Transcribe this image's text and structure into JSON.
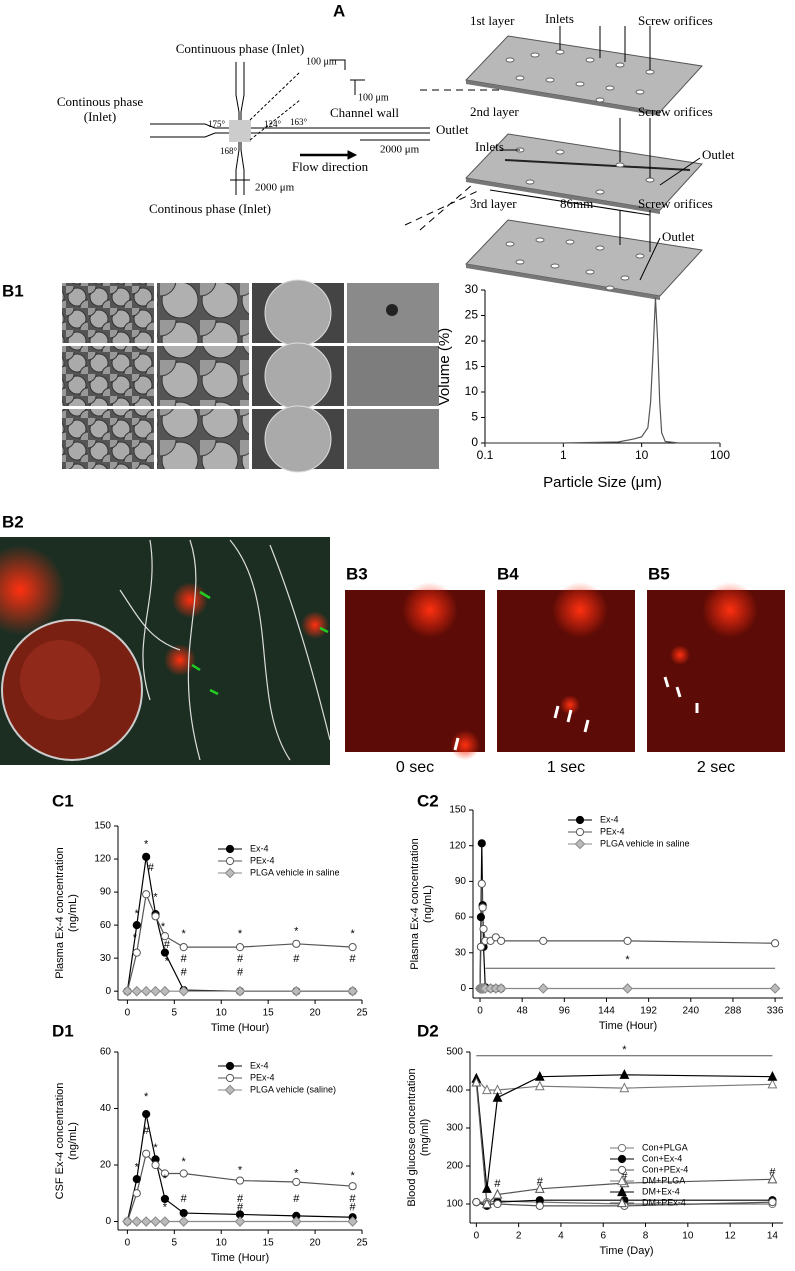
{
  "panel_labels": [
    "A",
    "B1",
    "B2",
    "B3",
    "B4",
    "B5",
    "C1",
    "C2",
    "D1",
    "D2"
  ],
  "diagram_a": {
    "top_inlet": "Continuous phase (Inlet)",
    "left_inlet": [
      "Continous phase",
      "(Inlet)"
    ],
    "bottom_inlet": "Continous phase (Inlet)",
    "width_a": "100 μm",
    "width_b": "100 μm",
    "channel_wall": "Channel wall",
    "outlet": "Outlet",
    "angles": [
      "175°",
      "124°",
      "163°",
      "168°"
    ],
    "length_a": "2000 μm",
    "length_b": "2000 μm",
    "flow": "Flow direction",
    "layer1": {
      "name": "1st layer",
      "inlets": "Inlets",
      "screw": "Screw orifices"
    },
    "layer2": {
      "name": "2nd layer",
      "inlets": "Inlets",
      "screw": "Screw orifices",
      "outlet": "Outlet",
      "size": "86mm"
    },
    "layer3": {
      "name": "3rd layer",
      "screw": "Screw orifices",
      "outlet": "Outlet"
    }
  },
  "time_labels": [
    "0 sec",
    "1 sec",
    "2 sec"
  ],
  "chart_data": [
    {
      "type": "line",
      "xscale": "log",
      "xlabel": "Particle Size (μm)",
      "ylabel": [
        "Volume (%)"
      ],
      "x": [
        0.1,
        1,
        5,
        8,
        10,
        12,
        13,
        14,
        15,
        16,
        17,
        18,
        20,
        30,
        100
      ],
      "values": [
        0,
        0,
        0.2,
        0.8,
        1.2,
        3,
        8,
        18,
        28.5,
        20,
        8,
        2,
        0.3,
        0,
        0
      ],
      "color": "#555",
      "xlim": [
        0.1,
        100
      ],
      "xticks": [
        0.1,
        1,
        10,
        100
      ],
      "ylim": [
        0,
        30
      ],
      "yticks": [
        0,
        5,
        10,
        15,
        20,
        25,
        30
      ]
    },
    {
      "type": "line",
      "xlabel": "Time (Hour)",
      "ylabel": [
        "Plasma Ex-4 concentration",
        "(ng/mL)"
      ],
      "x": [
        0,
        1,
        2,
        3,
        4,
        6,
        12,
        18,
        24
      ],
      "xlim": [
        -1,
        25
      ],
      "xticks": [
        0,
        5,
        10,
        15,
        20,
        25
      ],
      "ylim": [
        -8,
        150
      ],
      "yticks": [
        0,
        30,
        60,
        90,
        120,
        150
      ],
      "series": [
        {
          "name": "Ex-4",
          "color": "#000",
          "fill": "#000",
          "marker": "circle",
          "values": [
            0,
            60,
            122,
            70,
            35,
            1,
            0,
            0,
            0
          ]
        },
        {
          "name": "PEx-4",
          "color": "#555",
          "fill": "#fff",
          "marker": "circle",
          "values": [
            0,
            35,
            88,
            68,
            50,
            40,
            40,
            43,
            40
          ]
        },
        {
          "name": "PLGA vehicle in saline",
          "color": "#888",
          "fill": "#bbb",
          "marker": "diamond",
          "values": [
            0,
            0,
            0,
            0,
            0,
            0,
            0,
            0,
            0
          ]
        }
      ],
      "annotations": [
        {
          "text": "*",
          "x": 2,
          "y": 133
        },
        {
          "text": "#",
          "x": 2.5,
          "y": 112
        },
        {
          "text": "*",
          "x": 1,
          "y": 70
        },
        {
          "text": "*",
          "x": 0.8,
          "y": 48
        },
        {
          "text": "*",
          "x": 3,
          "y": 85
        },
        {
          "text": "*",
          "x": 3.8,
          "y": 58
        },
        {
          "text": "#",
          "x": 4.2,
          "y": 42
        },
        {
          "text": "*",
          "x": 4.2,
          "y": 27
        },
        {
          "text": "*",
          "x": 6,
          "y": 52
        },
        {
          "text": "#",
          "x": 6,
          "y": 29
        },
        {
          "text": "#",
          "x": 6,
          "y": 17
        },
        {
          "text": "*",
          "x": 12,
          "y": 52
        },
        {
          "text": "#",
          "x": 12,
          "y": 29
        },
        {
          "text": "#",
          "x": 12,
          "y": 17
        },
        {
          "text": "*",
          "x": 18,
          "y": 54
        },
        {
          "text": "#",
          "x": 18,
          "y": 29
        },
        {
          "text": "*",
          "x": 24,
          "y": 52
        },
        {
          "text": "#",
          "x": 24,
          "y": 29
        }
      ]
    },
    {
      "type": "line",
      "xlabel": "Time (Hour)",
      "ylabel": [
        "Plasma Ex-4 concentration",
        "(ng/mL)"
      ],
      "x": [
        0,
        1,
        2,
        3,
        4,
        6,
        12,
        18,
        24,
        72,
        168,
        336
      ],
      "xlim": [
        -8,
        345
      ],
      "xticks": [
        0,
        48,
        96,
        144,
        192,
        240,
        288,
        336
      ],
      "ylim": [
        -8,
        150
      ],
      "yticks": [
        0,
        30,
        60,
        90,
        120,
        150
      ],
      "series": [
        {
          "name": "Ex-4",
          "color": "#000",
          "fill": "#000",
          "marker": "circle",
          "values": [
            0,
            60,
            122,
            70,
            35,
            1,
            0,
            0,
            0,
            null,
            null,
            null
          ]
        },
        {
          "name": "PEx-4",
          "color": "#555",
          "fill": "#fff",
          "marker": "circle",
          "values": [
            0,
            35,
            88,
            68,
            50,
            40,
            40,
            43,
            40,
            40,
            40,
            38
          ]
        },
        {
          "name": "PLGA vehicle in saline",
          "color": "#888",
          "fill": "#bbb",
          "marker": "diamond",
          "values": [
            0,
            0,
            0,
            0,
            0,
            0,
            0,
            0,
            0,
            0,
            0,
            0
          ]
        }
      ],
      "sig_line": {
        "x": [
          6,
          336
        ],
        "y": 17
      },
      "annotations": [
        {
          "text": "*",
          "x": 168,
          "y": 24
        }
      ]
    },
    {
      "type": "line",
      "xlabel": "Time (Hour)",
      "ylabel": [
        "CSF Ex-4 concentration",
        "(ng/mL)"
      ],
      "x": [
        0,
        1,
        2,
        3,
        4,
        6,
        12,
        18,
        24
      ],
      "xlim": [
        -1,
        25
      ],
      "xticks": [
        0,
        5,
        10,
        15,
        20,
        25
      ],
      "ylim": [
        -3,
        60
      ],
      "yticks": [
        0,
        20,
        40,
        60
      ],
      "series": [
        {
          "name": "Ex-4",
          "color": "#000",
          "fill": "#000",
          "marker": "circle",
          "values": [
            0,
            15,
            38,
            22,
            8,
            3,
            2.5,
            2,
            1.5
          ]
        },
        {
          "name": "PEx-4",
          "color": "#555",
          "fill": "#fff",
          "marker": "circle",
          "values": [
            0,
            10,
            24,
            20,
            17,
            17,
            14.5,
            14,
            12.5
          ]
        },
        {
          "name": "PLGA vehicle (saline)",
          "color": "#888",
          "fill": "#bbb",
          "marker": "diamond",
          "values": [
            0,
            0,
            0,
            0,
            0,
            0,
            0,
            0,
            0
          ]
        }
      ],
      "annotations": [
        {
          "text": "*",
          "x": 2,
          "y": 44
        },
        {
          "text": "#",
          "x": 2,
          "y": 32
        },
        {
          "text": "*",
          "x": 1,
          "y": 19
        },
        {
          "text": "*",
          "x": 3,
          "y": 26
        },
        {
          "text": "*",
          "x": 4,
          "y": 15
        },
        {
          "text": "*",
          "x": 4,
          "y": 5
        },
        {
          "text": "*",
          "x": 6,
          "y": 21
        },
        {
          "text": "#",
          "x": 6,
          "y": 8
        },
        {
          "text": "*",
          "x": 12,
          "y": 18
        },
        {
          "text": "#",
          "x": 12,
          "y": 8
        },
        {
          "text": "#",
          "x": 12,
          "y": 5
        },
        {
          "text": "*",
          "x": 18,
          "y": 17
        },
        {
          "text": "#",
          "x": 18,
          "y": 8
        },
        {
          "text": "*",
          "x": 24,
          "y": 16
        },
        {
          "text": "#",
          "x": 24,
          "y": 8
        },
        {
          "text": "#",
          "x": 24,
          "y": 5
        }
      ]
    },
    {
      "type": "line",
      "xlabel": "Time (Day)",
      "ylabel": [
        "Blood glucose concentration",
        "(mg/ml)"
      ],
      "x": [
        0,
        0.5,
        1,
        3,
        7,
        14
      ],
      "xlim": [
        -0.3,
        14.5
      ],
      "xticks": [
        0,
        2,
        4,
        6,
        8,
        10,
        12,
        14
      ],
      "ylim": [
        50,
        500
      ],
      "yticks": [
        100,
        200,
        300,
        400,
        500
      ],
      "series": [
        {
          "name": "Con+PLGA",
          "color": "#777",
          "fill": "#fff",
          "marker": "circle",
          "values": [
            105,
            105,
            108,
            105,
            100,
            100
          ]
        },
        {
          "name": "Con+Ex-4",
          "color": "#000",
          "fill": "#000",
          "marker": "circle",
          "values": [
            105,
            95,
            105,
            110,
            110,
            110
          ]
        },
        {
          "name": "Con+PEx-4",
          "color": "#555",
          "fill": "#fff",
          "marker": "circle",
          "values": [
            105,
            100,
            100,
            95,
            95,
            105
          ]
        },
        {
          "name": "DM+PLGA",
          "color": "#777",
          "fill": "#fff",
          "marker": "triangle",
          "values": [
            430,
            400,
            400,
            410,
            405,
            415
          ]
        },
        {
          "name": "DM+Ex-4",
          "color": "#000",
          "fill": "#000",
          "marker": "triangle",
          "values": [
            430,
            140,
            380,
            435,
            440,
            435
          ]
        },
        {
          "name": "DM+PEx-4",
          "color": "#555",
          "fill": "#fff",
          "marker": "triangle",
          "values": [
            420,
            100,
            125,
            140,
            155,
            165
          ]
        }
      ],
      "sig_line": {
        "x": [
          0,
          14
        ],
        "y": 490
      },
      "annotations": [
        {
          "text": "*",
          "x": 7,
          "y": 505
        },
        {
          "text": "#",
          "x": 1,
          "y": 152
        },
        {
          "text": "#",
          "x": 3,
          "y": 158
        },
        {
          "text": "#",
          "x": 7,
          "y": 172
        },
        {
          "text": "#",
          "x": 14,
          "y": 182
        }
      ]
    }
  ]
}
